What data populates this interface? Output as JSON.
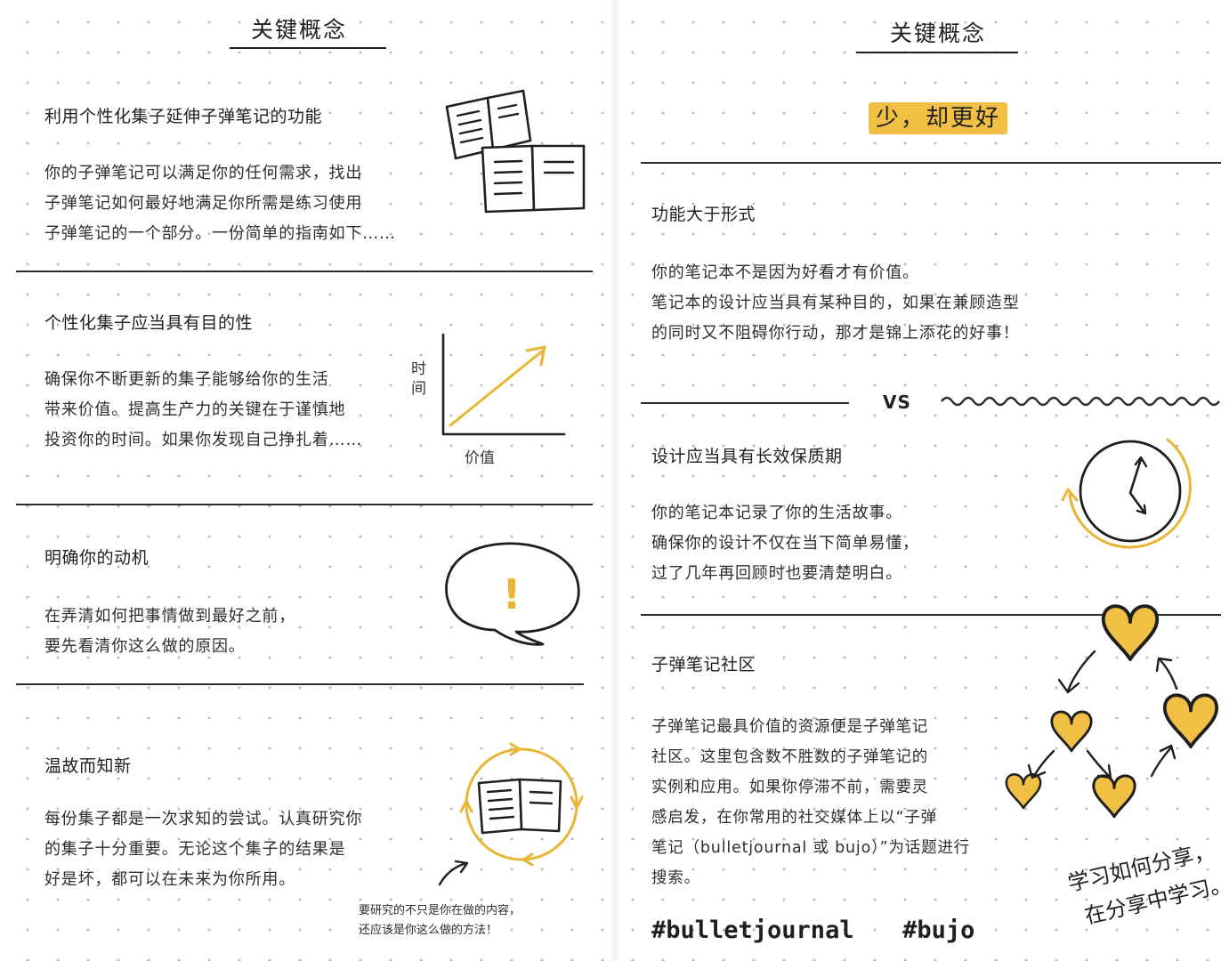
{
  "colors": {
    "accent": "#f0bf43",
    "ink": "#1f1f1f"
  },
  "left_page": {
    "title": "关键概念",
    "sections": [
      {
        "heading": "利用个性化集子延伸子弹笔记的功能",
        "lines": [
          "你的子弹笔记可以满足你的任何需求，找出",
          "子弹笔记如何最好地满足你所需是练习使用",
          "子弹笔记的一个部分。一份简单的指南如下……"
        ],
        "icon": "open-notebooks-icon"
      },
      {
        "heading": "个性化集子应当具有目的性",
        "lines": [
          "确保你不断更新的集子能够给你的生活",
          "带来价值。提高生产力的关键在于谨慎地",
          "投资你的时间。如果你发现自己挣扎着……"
        ],
        "chart": {
          "y_label": "时间",
          "x_label": "价值",
          "icon": "rising-arrow-icon"
        }
      },
      {
        "heading": "明确你的动机",
        "lines": [
          "在弄清如何把事情做到最好之前，",
          "要先看清你这么做的原因。"
        ],
        "icon": "exclamation-bubble-icon",
        "mark": "!"
      },
      {
        "heading": "温故而知新",
        "lines": [
          "每份集子都是一次求知的尝试。认真研究你",
          "的集子十分重要。无论这个集子的结果是",
          "好是坏，都可以在未来为你所用。"
        ],
        "icon": "cycle-notebook-icon",
        "note_lines": [
          "要研究的不只是你在做的内容，",
          "还应该是你这么做的方法！"
        ]
      }
    ]
  },
  "right_page": {
    "title": "关键概念",
    "tagline": "少，却更好",
    "vs": "VS",
    "sections": [
      {
        "heading": "功能大于形式",
        "lines": [
          "你的笔记本不是因为好看才有价值。",
          "笔记本的设计应当具有某种目的，如果在兼顾造型",
          "的同时又不阻碍你行动，那才是锦上添花的好事！"
        ]
      },
      {
        "heading": "设计应当具有长效保质期",
        "lines": [
          "你的笔记本记录了你的生活故事。",
          "确保你的设计不仅在当下简单易懂，",
          "过了几年再回顾时也要清楚明白。"
        ],
        "icon": "clock-icon"
      },
      {
        "heading": "子弹笔记社区",
        "lines": [
          "子弹笔记最具价值的资源便是子弹笔记",
          "社区。这里包含数不胜数的子弹笔记的",
          "实例和应用。如果你停滞不前，需要灵",
          "感启发，在你常用的社交媒体上以“子弹",
          "笔记（bulletjournal 或 bujo）”为话题进行",
          "搜索。"
        ],
        "icon": "hearts-network-icon",
        "hand_lines": [
          "学习如何分享，",
          "在分享中学习。"
        ],
        "hashtags": [
          "#bulletjournal",
          "#bujo"
        ]
      }
    ]
  }
}
